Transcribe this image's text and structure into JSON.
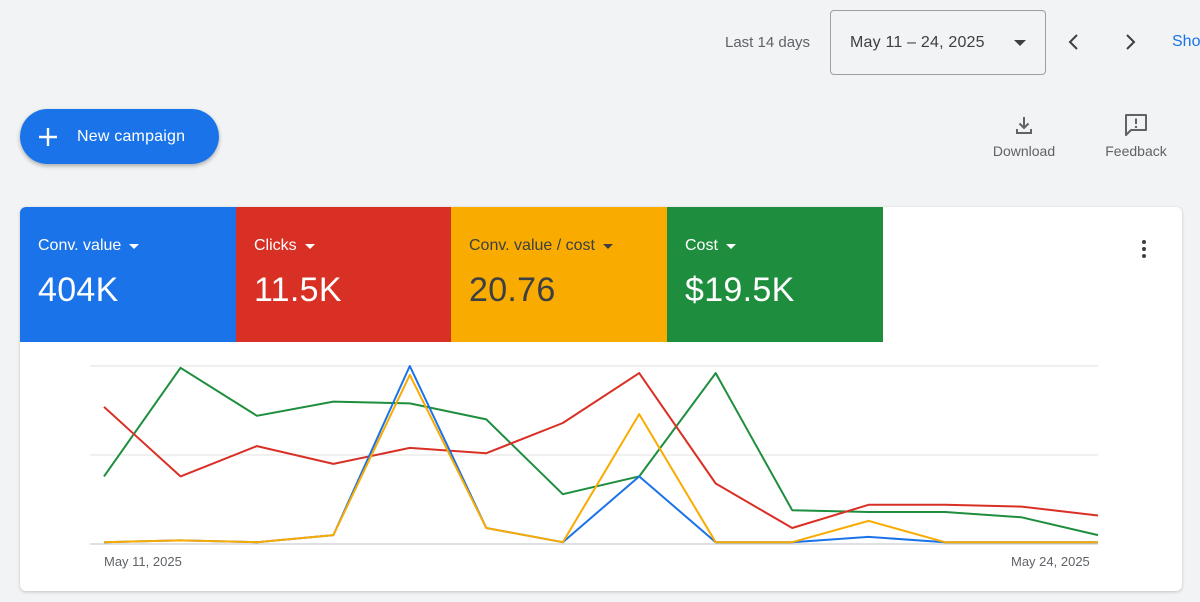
{
  "header": {
    "range_label": "Last 14 days",
    "date_range": "May 11 – 24, 2025",
    "show_link": "Show",
    "icons": {
      "prev": "chevron-left-icon",
      "next": "chevron-right-icon",
      "dropdown": "arrow-drop-down-icon"
    }
  },
  "toolbar": {
    "new_campaign_label": "New campaign",
    "download_label": "Download",
    "feedback_label": "Feedback",
    "icons": {
      "new_campaign": "plus-icon",
      "download": "download-icon",
      "feedback": "feedback-icon",
      "more": "more-vert-icon"
    }
  },
  "metrics": [
    {
      "label": "Conv. value",
      "value": "404K",
      "color": "#1a73e8"
    },
    {
      "label": "Clicks",
      "value": "11.5K",
      "color": "#d93025"
    },
    {
      "label": "Conv. value / cost",
      "value": "20.76",
      "color": "#f9ab00"
    },
    {
      "label": "Cost",
      "value": "$19.5K",
      "color": "#1e8e3e"
    }
  ],
  "chart_data": {
    "type": "line",
    "x_start_label": "May 11, 2025",
    "x_end_label": "May 24, 2025",
    "grid": true,
    "ylim": [
      0,
      100
    ],
    "x": [
      "May 11",
      "May 12",
      "May 13",
      "May 14",
      "May 15",
      "May 16",
      "May 17",
      "May 18",
      "May 19",
      "May 20",
      "May 21",
      "May 22",
      "May 23",
      "May 24"
    ],
    "series": [
      {
        "color": "#1a73e8",
        "values": [
          1,
          2,
          1,
          5,
          100,
          9,
          1,
          38,
          1,
          1,
          4,
          1,
          1,
          1
        ]
      },
      {
        "color": "#d93025",
        "values": [
          77,
          38,
          55,
          45,
          54,
          51,
          68,
          96,
          34,
          9,
          22,
          22,
          21,
          16
        ]
      },
      {
        "color": "#f9ab00",
        "values": [
          1,
          2,
          1,
          5,
          95,
          9,
          1,
          73,
          1,
          1,
          13,
          1,
          1,
          1
        ]
      },
      {
        "color": "#1e8e3e",
        "values": [
          38,
          99,
          72,
          80,
          79,
          70,
          28,
          38,
          96,
          19,
          18,
          18,
          15,
          5
        ]
      }
    ]
  }
}
